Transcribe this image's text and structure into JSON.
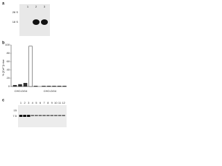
{
  "panel_a": {
    "label": "a",
    "lanes": [
      "1",
      "2",
      "3"
    ],
    "markers": [
      "28 S",
      "18 S"
    ]
  },
  "panel_b": {
    "label": "b",
    "y_label": "% [Ca²⁺]i rise",
    "ylim": [
      0,
      100
    ],
    "yticks": [
      0,
      20,
      40,
      60,
      80,
      100
    ],
    "values": [
      3,
      5,
      8,
      97,
      1,
      1,
      1,
      1,
      1,
      1
    ],
    "groups": [
      "CHO-DG4",
      "CHO-DG4"
    ]
  },
  "panel_c": {
    "label": "c",
    "lanes": [
      "1",
      "2",
      "3",
      "4",
      "5",
      "6",
      "7",
      "8",
      "9",
      "10",
      "11",
      "12"
    ],
    "markers": [
      "15",
      "7.5"
    ]
  }
}
